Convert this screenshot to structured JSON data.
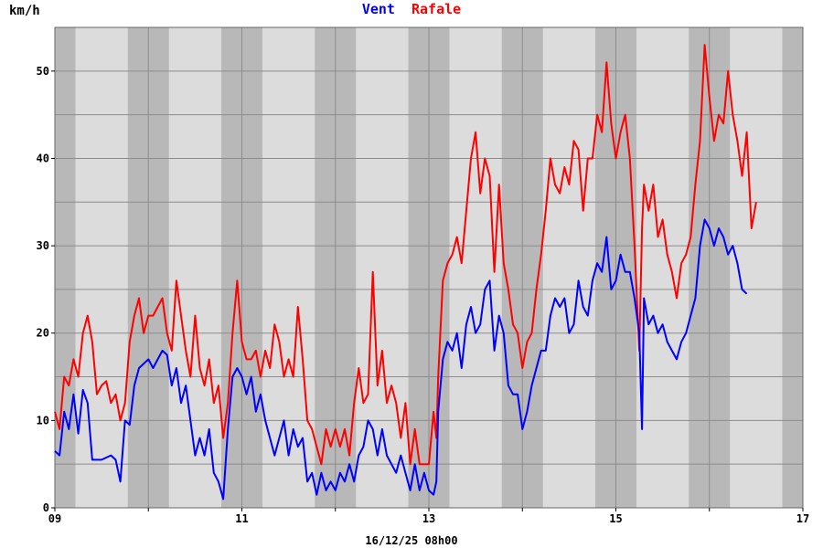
{
  "chart_data": {
    "type": "line",
    "title_parts": [
      {
        "text": "Vent",
        "color": "#0000ff"
      },
      {
        "text": "Rafale",
        "color": "#ff0000"
      }
    ],
    "ylabel": "km/h",
    "xlabel": "16/12/25 08h00",
    "xlim": [
      9,
      17
    ],
    "ylim": [
      0,
      55
    ],
    "x_ticks": [
      {
        "value": 9,
        "label": "09"
      },
      {
        "value": 11,
        "label": "11"
      },
      {
        "value": 13,
        "label": "13"
      },
      {
        "value": 15,
        "label": "15"
      },
      {
        "value": 17,
        "label": "17"
      }
    ],
    "y_ticks": [
      0,
      10,
      20,
      30,
      40,
      50
    ],
    "grid": true,
    "night_bands": [
      [
        9.0,
        9.22
      ],
      [
        9.78,
        10.22
      ],
      [
        10.78,
        11.22
      ],
      [
        11.78,
        12.22
      ],
      [
        12.78,
        13.22
      ],
      [
        13.78,
        14.22
      ],
      [
        14.78,
        15.22
      ],
      [
        15.78,
        16.22
      ],
      [
        16.78,
        17.0
      ]
    ],
    "series": [
      {
        "name": "Vent",
        "color": "#0000ff",
        "points": [
          [
            9.0,
            6.5
          ],
          [
            9.05,
            6
          ],
          [
            9.1,
            11
          ],
          [
            9.15,
            9
          ],
          [
            9.2,
            13
          ],
          [
            9.25,
            8.5
          ],
          [
            9.3,
            13.5
          ],
          [
            9.35,
            12
          ],
          [
            9.4,
            5.5
          ],
          [
            9.5,
            5.5
          ],
          [
            9.6,
            6
          ],
          [
            9.65,
            5.5
          ],
          [
            9.7,
            3
          ],
          [
            9.75,
            10
          ],
          [
            9.8,
            9.5
          ],
          [
            9.85,
            14
          ],
          [
            9.9,
            16
          ],
          [
            10.0,
            17
          ],
          [
            10.05,
            16
          ],
          [
            10.1,
            17
          ],
          [
            10.15,
            18
          ],
          [
            10.2,
            17.5
          ],
          [
            10.25,
            14
          ],
          [
            10.3,
            16
          ],
          [
            10.35,
            12
          ],
          [
            10.4,
            14
          ],
          [
            10.45,
            10
          ],
          [
            10.5,
            6
          ],
          [
            10.55,
            8
          ],
          [
            10.6,
            6
          ],
          [
            10.65,
            9
          ],
          [
            10.7,
            4
          ],
          [
            10.75,
            3
          ],
          [
            10.8,
            1
          ],
          [
            10.85,
            9
          ],
          [
            10.9,
            15
          ],
          [
            10.95,
            16
          ],
          [
            11.0,
            15
          ],
          [
            11.05,
            13
          ],
          [
            11.1,
            15
          ],
          [
            11.15,
            11
          ],
          [
            11.2,
            13
          ],
          [
            11.25,
            10
          ],
          [
            11.3,
            8
          ],
          [
            11.35,
            6
          ],
          [
            11.4,
            8
          ],
          [
            11.45,
            10
          ],
          [
            11.5,
            6
          ],
          [
            11.55,
            9
          ],
          [
            11.6,
            7
          ],
          [
            11.65,
            8
          ],
          [
            11.7,
            3
          ],
          [
            11.75,
            4
          ],
          [
            11.8,
            1.5
          ],
          [
            11.85,
            4
          ],
          [
            11.9,
            2
          ],
          [
            11.95,
            3
          ],
          [
            12.0,
            2
          ],
          [
            12.05,
            4
          ],
          [
            12.1,
            3
          ],
          [
            12.15,
            5
          ],
          [
            12.2,
            3
          ],
          [
            12.25,
            6
          ],
          [
            12.3,
            7
          ],
          [
            12.35,
            10
          ],
          [
            12.4,
            9
          ],
          [
            12.45,
            6
          ],
          [
            12.5,
            9
          ],
          [
            12.55,
            6
          ],
          [
            12.6,
            5
          ],
          [
            12.65,
            4
          ],
          [
            12.7,
            6
          ],
          [
            12.75,
            4
          ],
          [
            12.8,
            2
          ],
          [
            12.85,
            5
          ],
          [
            12.9,
            2
          ],
          [
            12.95,
            4
          ],
          [
            13.0,
            2
          ],
          [
            13.05,
            1.5
          ],
          [
            13.08,
            3
          ],
          [
            13.1,
            11
          ],
          [
            13.15,
            17
          ],
          [
            13.2,
            19
          ],
          [
            13.25,
            18
          ],
          [
            13.3,
            20
          ],
          [
            13.35,
            16
          ],
          [
            13.4,
            21
          ],
          [
            13.45,
            23
          ],
          [
            13.5,
            20
          ],
          [
            13.55,
            21
          ],
          [
            13.6,
            25
          ],
          [
            13.65,
            26
          ],
          [
            13.7,
            18
          ],
          [
            13.75,
            22
          ],
          [
            13.8,
            20
          ],
          [
            13.85,
            14
          ],
          [
            13.9,
            13
          ],
          [
            13.95,
            13
          ],
          [
            14.0,
            9
          ],
          [
            14.05,
            11
          ],
          [
            14.1,
            14
          ],
          [
            14.15,
            16
          ],
          [
            14.2,
            18
          ],
          [
            14.25,
            18
          ],
          [
            14.3,
            22
          ],
          [
            14.35,
            24
          ],
          [
            14.4,
            23
          ],
          [
            14.45,
            24
          ],
          [
            14.5,
            20
          ],
          [
            14.55,
            21
          ],
          [
            14.6,
            26
          ],
          [
            14.65,
            23
          ],
          [
            14.7,
            22
          ],
          [
            14.75,
            26
          ],
          [
            14.8,
            28
          ],
          [
            14.85,
            27
          ],
          [
            14.9,
            31
          ],
          [
            14.95,
            25
          ],
          [
            15.0,
            26
          ],
          [
            15.05,
            29
          ],
          [
            15.1,
            27
          ],
          [
            15.15,
            27
          ],
          [
            15.2,
            24
          ],
          [
            15.25,
            20
          ],
          [
            15.28,
            9
          ],
          [
            15.3,
            24
          ],
          [
            15.35,
            21
          ],
          [
            15.4,
            22
          ],
          [
            15.45,
            20
          ],
          [
            15.5,
            21
          ],
          [
            15.55,
            19
          ],
          [
            15.6,
            18
          ],
          [
            15.65,
            17
          ],
          [
            15.7,
            19
          ],
          [
            15.75,
            20
          ],
          [
            15.8,
            22
          ],
          [
            15.85,
            24
          ],
          [
            15.9,
            30
          ],
          [
            15.95,
            33
          ],
          [
            16.0,
            32
          ],
          [
            16.05,
            30
          ],
          [
            16.1,
            32
          ],
          [
            16.15,
            31
          ],
          [
            16.2,
            29
          ],
          [
            16.25,
            30
          ],
          [
            16.3,
            28
          ],
          [
            16.35,
            25
          ],
          [
            16.4,
            24.5
          ]
        ]
      },
      {
        "name": "Rafale",
        "color": "#ff0000",
        "points": [
          [
            9.0,
            11
          ],
          [
            9.05,
            9
          ],
          [
            9.1,
            15
          ],
          [
            9.15,
            14
          ],
          [
            9.2,
            17
          ],
          [
            9.25,
            15
          ],
          [
            9.3,
            20
          ],
          [
            9.35,
            22
          ],
          [
            9.4,
            19
          ],
          [
            9.45,
            13
          ],
          [
            9.5,
            14
          ],
          [
            9.55,
            14.5
          ],
          [
            9.6,
            12
          ],
          [
            9.65,
            13
          ],
          [
            9.7,
            10
          ],
          [
            9.75,
            12
          ],
          [
            9.8,
            19
          ],
          [
            9.85,
            22
          ],
          [
            9.9,
            24
          ],
          [
            9.95,
            20
          ],
          [
            10.0,
            22
          ],
          [
            10.05,
            22
          ],
          [
            10.1,
            23
          ],
          [
            10.15,
            24
          ],
          [
            10.2,
            20
          ],
          [
            10.25,
            18
          ],
          [
            10.3,
            26
          ],
          [
            10.35,
            22
          ],
          [
            10.4,
            18
          ],
          [
            10.45,
            15
          ],
          [
            10.5,
            22
          ],
          [
            10.55,
            16
          ],
          [
            10.6,
            14
          ],
          [
            10.65,
            17
          ],
          [
            10.7,
            12
          ],
          [
            10.75,
            14
          ],
          [
            10.8,
            8
          ],
          [
            10.85,
            12
          ],
          [
            10.9,
            20
          ],
          [
            10.95,
            26
          ],
          [
            11.0,
            19
          ],
          [
            11.05,
            17
          ],
          [
            11.1,
            17
          ],
          [
            11.15,
            18
          ],
          [
            11.2,
            15
          ],
          [
            11.25,
            18
          ],
          [
            11.3,
            16
          ],
          [
            11.35,
            21
          ],
          [
            11.4,
            19
          ],
          [
            11.45,
            15
          ],
          [
            11.5,
            17
          ],
          [
            11.55,
            15
          ],
          [
            11.6,
            23
          ],
          [
            11.65,
            17
          ],
          [
            11.7,
            10
          ],
          [
            11.75,
            9
          ],
          [
            11.8,
            7
          ],
          [
            11.85,
            5
          ],
          [
            11.9,
            9
          ],
          [
            11.95,
            7
          ],
          [
            12.0,
            9
          ],
          [
            12.05,
            7
          ],
          [
            12.1,
            9
          ],
          [
            12.15,
            6
          ],
          [
            12.2,
            12
          ],
          [
            12.25,
            16
          ],
          [
            12.3,
            12
          ],
          [
            12.35,
            13
          ],
          [
            12.4,
            27
          ],
          [
            12.45,
            14
          ],
          [
            12.5,
            18
          ],
          [
            12.55,
            12
          ],
          [
            12.6,
            14
          ],
          [
            12.65,
            12
          ],
          [
            12.7,
            8
          ],
          [
            12.75,
            12
          ],
          [
            12.8,
            5
          ],
          [
            12.85,
            9
          ],
          [
            12.9,
            5
          ],
          [
            12.95,
            5
          ],
          [
            13.0,
            5
          ],
          [
            13.05,
            11
          ],
          [
            13.08,
            8
          ],
          [
            13.1,
            15
          ],
          [
            13.15,
            26
          ],
          [
            13.2,
            28
          ],
          [
            13.25,
            29
          ],
          [
            13.3,
            31
          ],
          [
            13.35,
            28
          ],
          [
            13.4,
            34
          ],
          [
            13.45,
            40
          ],
          [
            13.5,
            43
          ],
          [
            13.55,
            36
          ],
          [
            13.6,
            40
          ],
          [
            13.65,
            38
          ],
          [
            13.7,
            27
          ],
          [
            13.75,
            37
          ],
          [
            13.8,
            28
          ],
          [
            13.85,
            25
          ],
          [
            13.9,
            21
          ],
          [
            13.95,
            20
          ],
          [
            14.0,
            16
          ],
          [
            14.05,
            19
          ],
          [
            14.1,
            20
          ],
          [
            14.15,
            25
          ],
          [
            14.2,
            29
          ],
          [
            14.25,
            34
          ],
          [
            14.3,
            40
          ],
          [
            14.35,
            37
          ],
          [
            14.4,
            36
          ],
          [
            14.45,
            39
          ],
          [
            14.5,
            37
          ],
          [
            14.55,
            42
          ],
          [
            14.6,
            41
          ],
          [
            14.65,
            34
          ],
          [
            14.7,
            40
          ],
          [
            14.75,
            40
          ],
          [
            14.8,
            45
          ],
          [
            14.85,
            43
          ],
          [
            14.9,
            51
          ],
          [
            14.95,
            44
          ],
          [
            15.0,
            40
          ],
          [
            15.05,
            43
          ],
          [
            15.1,
            45
          ],
          [
            15.15,
            40
          ],
          [
            15.2,
            30
          ],
          [
            15.25,
            18
          ],
          [
            15.28,
            32
          ],
          [
            15.3,
            37
          ],
          [
            15.35,
            34
          ],
          [
            15.4,
            37
          ],
          [
            15.45,
            31
          ],
          [
            15.5,
            33
          ],
          [
            15.55,
            29
          ],
          [
            15.6,
            27
          ],
          [
            15.65,
            24
          ],
          [
            15.7,
            28
          ],
          [
            15.75,
            29
          ],
          [
            15.8,
            31
          ],
          [
            15.85,
            37
          ],
          [
            15.9,
            42
          ],
          [
            15.95,
            53
          ],
          [
            16.0,
            47
          ],
          [
            16.05,
            42
          ],
          [
            16.1,
            45
          ],
          [
            16.15,
            44
          ],
          [
            16.2,
            50
          ],
          [
            16.25,
            45
          ],
          [
            16.3,
            42
          ],
          [
            16.35,
            38
          ],
          [
            16.4,
            43
          ],
          [
            16.45,
            32
          ],
          [
            16.5,
            35
          ]
        ]
      }
    ]
  }
}
